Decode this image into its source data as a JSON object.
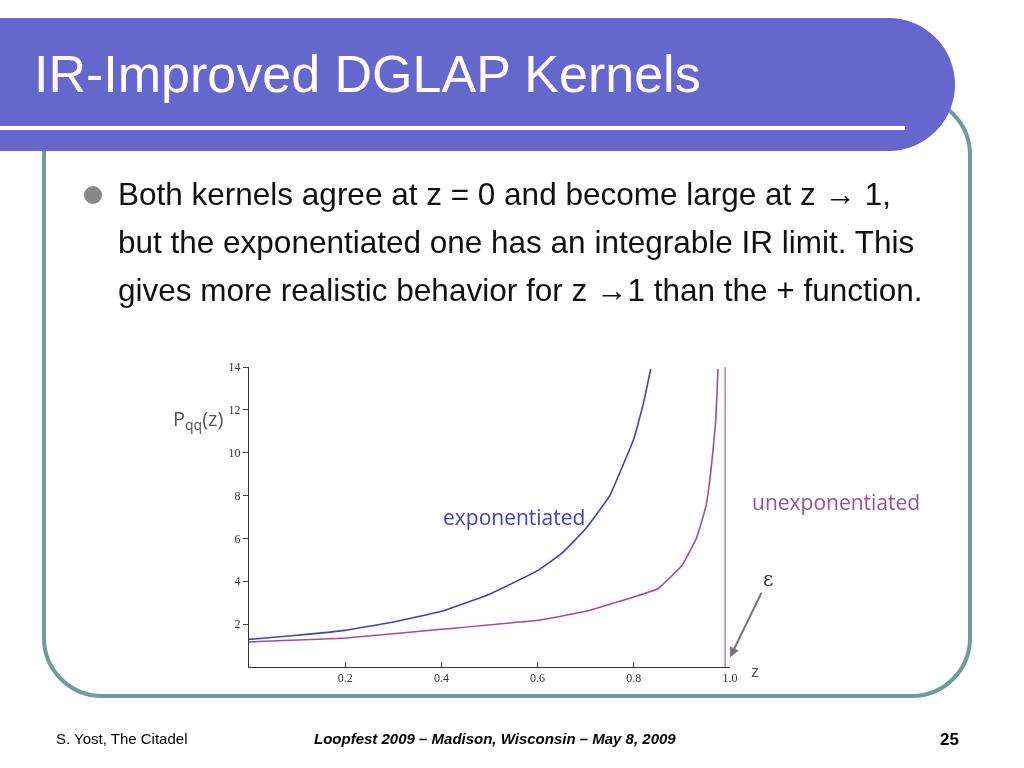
{
  "chart_data": {
    "type": "line",
    "title": "IR-Improved DGLAP Kernels",
    "subtitle": "Both kernels agree at z = 0 and become large at z → 1, but the exponentiated one has an integrable IR limit. This gives more realistic behavior for z →1 than the + function.",
    "xlabel": "z",
    "ylabel": "P$_{qq}$(z)",
    "series": [
      {
        "name": "exponentiated",
        "color": "#4040c0",
        "x": [
          0,
          0.1,
          0.2,
          0.3,
          0.4,
          0.5,
          0.6,
          0.65,
          0.7,
          0.75,
          0.8,
          0.82,
          0.835
        ],
        "values": [
          1.29,
          1.48,
          1.71,
          2.1,
          2.6,
          3.4,
          4.5,
          5.3,
          6.45,
          8.0,
          10.65,
          12.3,
          13.9
        ]
      },
      {
        "name": "unexponentiated",
        "color": "#a04c9c",
        "x": [
          0,
          0.2,
          0.4,
          0.6,
          0.7,
          0.8,
          0.85,
          0.9,
          0.93,
          0.95,
          0.96,
          0.97,
          0.975
        ],
        "values": [
          1.17,
          1.35,
          1.76,
          2.18,
          2.6,
          3.27,
          3.65,
          4.74,
          6.0,
          7.5,
          9.1,
          11.4,
          13.9
        ]
      }
    ],
    "xlim": [
      0,
      1
    ],
    "ylim": [
      0,
      14
    ],
    "xticks": [
      0.2,
      0.4,
      0.6,
      0.8,
      {
        "value": 1,
        "label": "1.0"
      }
    ],
    "yticks": [
      2,
      4,
      6,
      8,
      10,
      12,
      14
    ],
    "grid": false,
    "legend": false,
    "line_style": "solid",
    "marker": "none",
    "ref_lines": [
      {
        "axis": "x",
        "value": 0.99,
        "color": "#c080c8"
      }
    ],
    "annotations": [
      {
        "text": "ε",
        "x": 1.0,
        "y": 0.45
      },
      "S. Yost, The Citadel",
      "Loopfest 2009 – Madison, Wisconsin – May 8, 2009",
      "25"
    ]
  }
}
